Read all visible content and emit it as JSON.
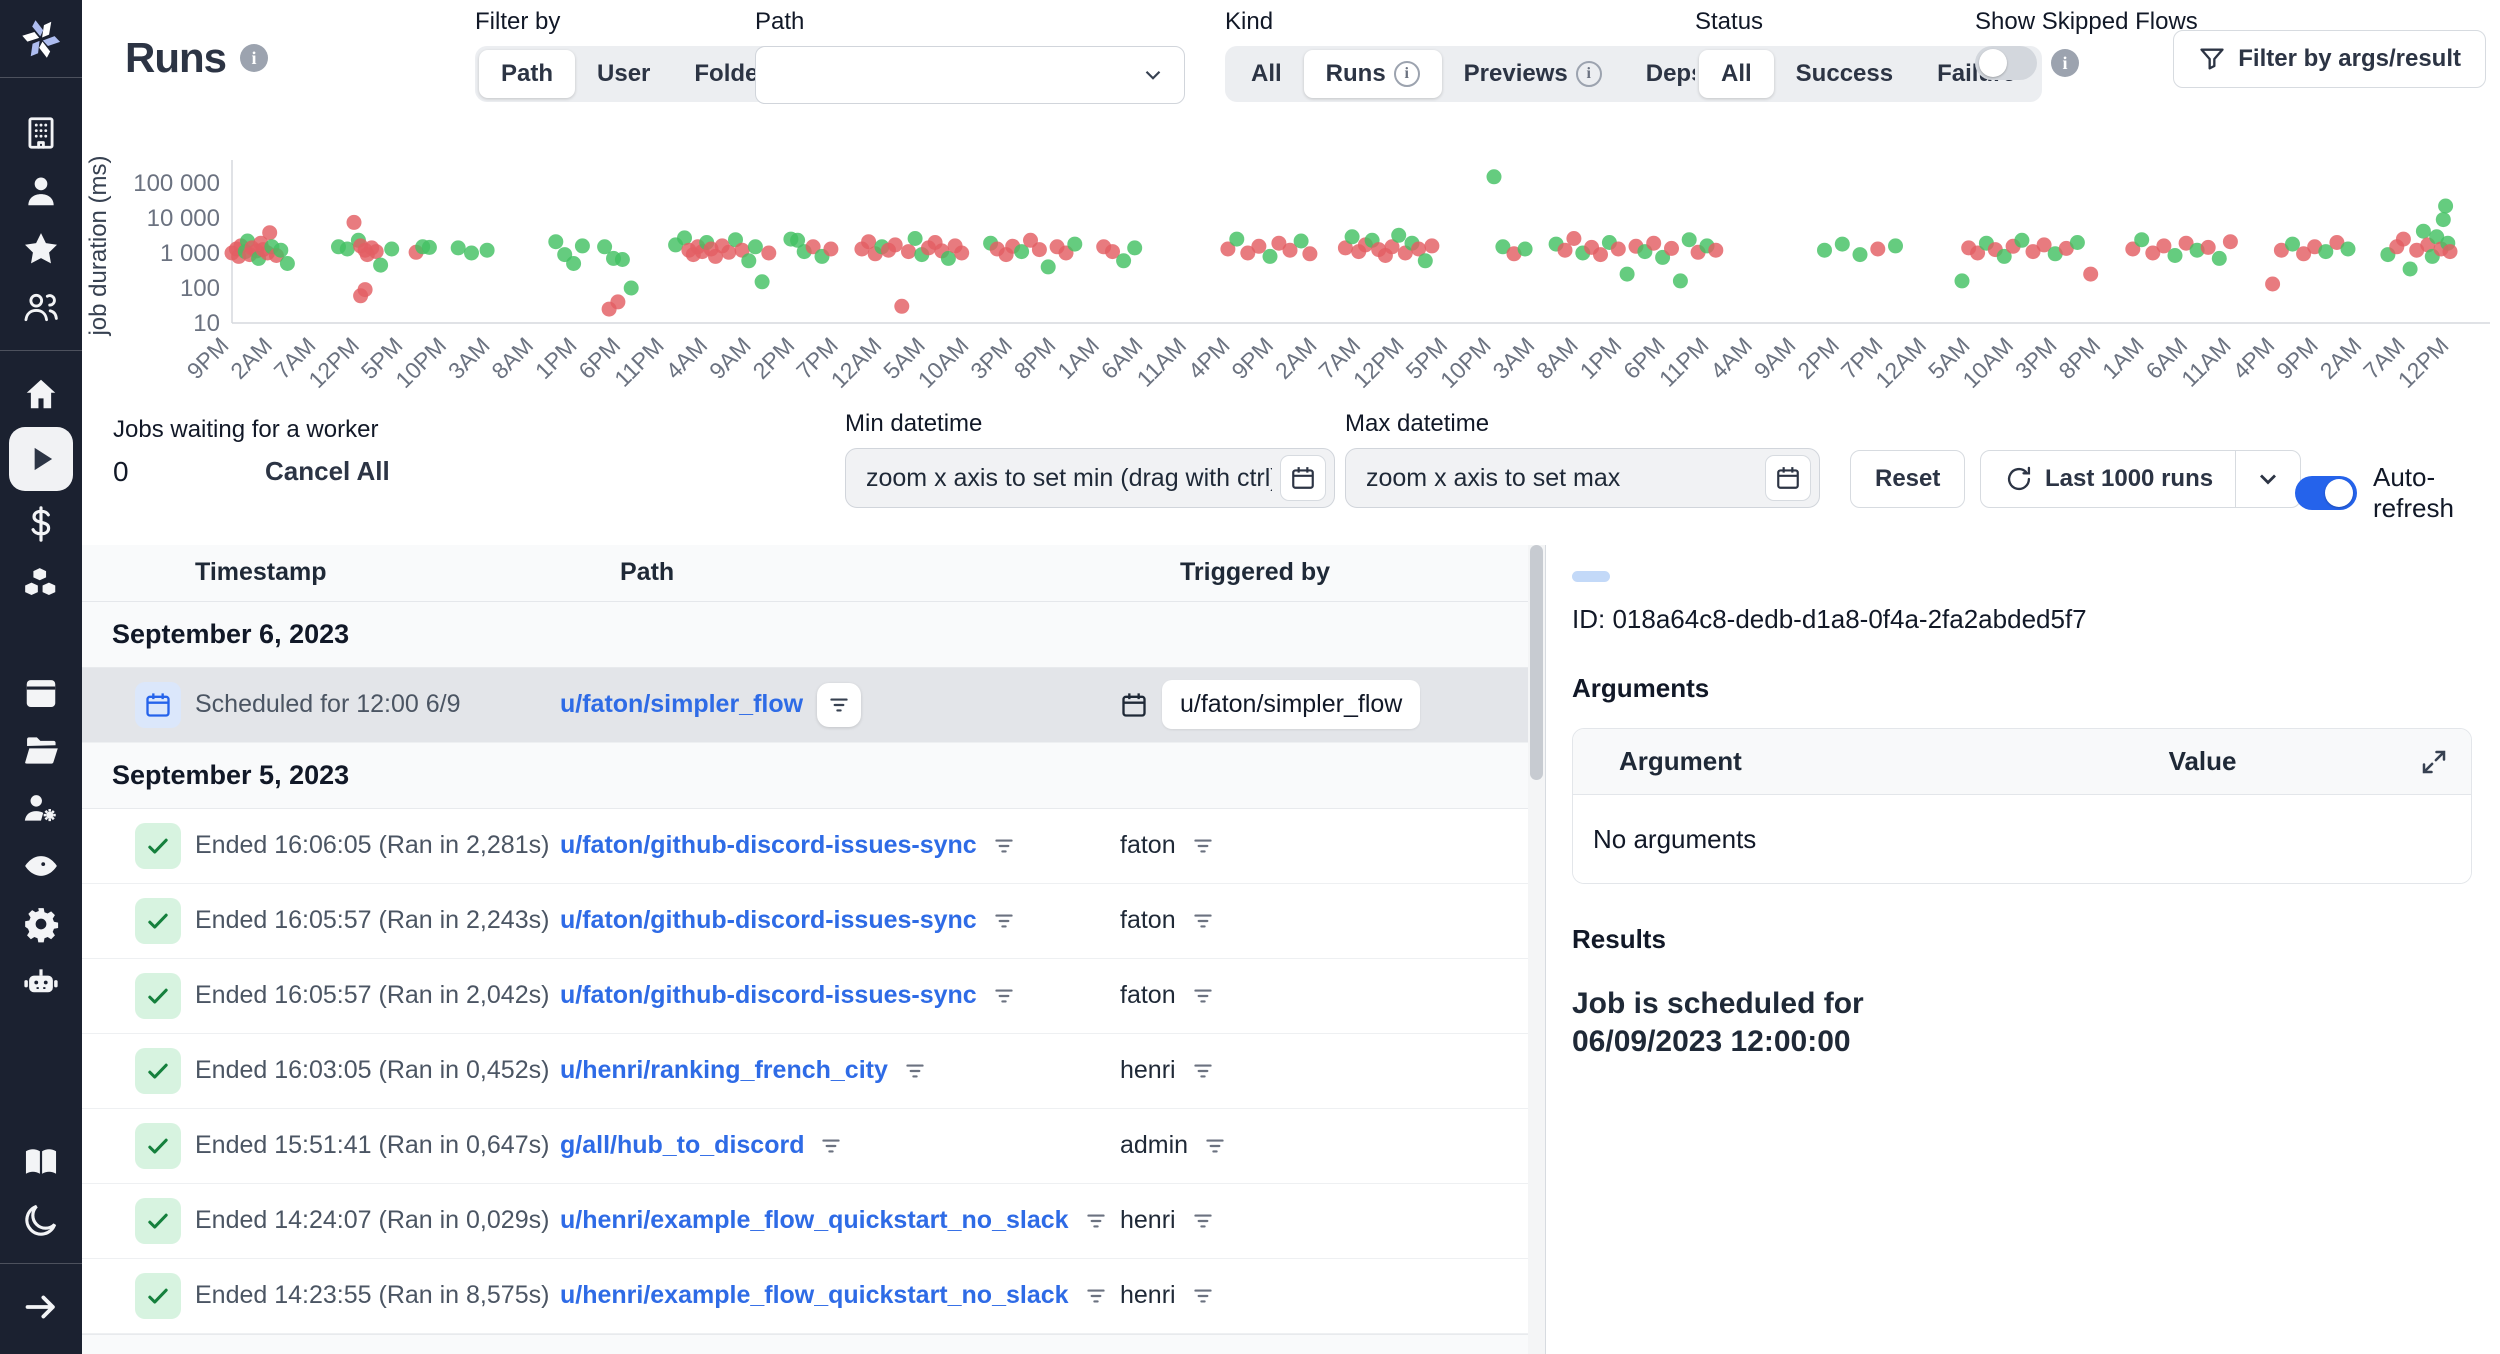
{
  "header": {
    "title": "Runs",
    "filter_by": {
      "label": "Filter by",
      "options": [
        "Path",
        "User",
        "Folder"
      ],
      "selected": "Path"
    },
    "path_filter": {
      "label": "Path",
      "value": ""
    },
    "kind": {
      "label": "Kind",
      "options": [
        {
          "label": "All",
          "info": false
        },
        {
          "label": "Runs",
          "info": true
        },
        {
          "label": "Previews",
          "info": true
        },
        {
          "label": "Deps",
          "info": true
        }
      ],
      "selected": "Runs"
    },
    "status": {
      "label": "Status",
      "options": [
        {
          "label": "All",
          "info": false
        },
        {
          "label": "Success",
          "info": false
        },
        {
          "label": "Failure",
          "info": false
        }
      ],
      "selected": "All"
    },
    "skipped_flows": {
      "label": "Show Skipped Flows",
      "enabled": false
    },
    "args_filter_button": "Filter by args/result"
  },
  "chart_data": {
    "type": "scatter",
    "ylabel": "job duration (ms)",
    "yscale": "log",
    "yticks": {
      "values": [
        100000,
        10000,
        1000,
        100,
        10
      ],
      "labels": [
        "100 000",
        "10 000",
        "1 000",
        "100",
        "10"
      ]
    },
    "xticks": [
      "9PM",
      "2AM",
      "7AM",
      "12PM",
      "5PM",
      "10PM",
      "3AM",
      "8AM",
      "1PM",
      "6PM",
      "11PM",
      "4AM",
      "9AM",
      "2PM",
      "7PM",
      "12AM",
      "5AM",
      "10AM",
      "3PM",
      "8PM",
      "1AM",
      "6AM",
      "11AM",
      "4PM",
      "9PM",
      "2AM",
      "7AM",
      "12PM",
      "5PM",
      "10PM",
      "3AM",
      "8AM",
      "1PM",
      "6PM",
      "11PM",
      "4AM",
      "9AM",
      "2PM",
      "7PM",
      "12AM",
      "5AM",
      "10AM",
      "3PM",
      "8PM",
      "1AM",
      "6AM",
      "11AM",
      "4PM",
      "9PM",
      "2AM",
      "7AM",
      "12PM"
    ],
    "series_colors": {
      "success": "#43c163",
      "failure": "#e35e63"
    },
    "legend": false,
    "grid": false,
    "points": [
      [
        0.0,
        1000,
        "f"
      ],
      [
        0.002,
        1300,
        "f"
      ],
      [
        0.003,
        800,
        "f"
      ],
      [
        0.004,
        1600,
        "f"
      ],
      [
        0.006,
        1100,
        "s"
      ],
      [
        0.007,
        2200,
        "s"
      ],
      [
        0.008,
        900,
        "f"
      ],
      [
        0.009,
        1400,
        "f"
      ],
      [
        0.011,
        1150,
        "f"
      ],
      [
        0.012,
        700,
        "s"
      ],
      [
        0.013,
        1900,
        "f"
      ],
      [
        0.014,
        1250,
        "f"
      ],
      [
        0.016,
        1000,
        "f"
      ],
      [
        0.017,
        3800,
        "f"
      ],
      [
        0.018,
        1500,
        "s"
      ],
      [
        0.02,
        850,
        "f"
      ],
      [
        0.022,
        1200,
        "s"
      ],
      [
        0.025,
        500,
        "s"
      ],
      [
        0.048,
        1500,
        "s"
      ],
      [
        0.052,
        1300,
        "s"
      ],
      [
        0.055,
        7500,
        "f"
      ],
      [
        0.057,
        2300,
        "s"
      ],
      [
        0.058,
        1600,
        "f"
      ],
      [
        0.06,
        1200,
        "f"
      ],
      [
        0.061,
        900,
        "f"
      ],
      [
        0.063,
        1400,
        "f"
      ],
      [
        0.065,
        1100,
        "f"
      ],
      [
        0.067,
        450,
        "s"
      ],
      [
        0.058,
        60,
        "f"
      ],
      [
        0.06,
        90,
        "f"
      ],
      [
        0.072,
        1300,
        "s"
      ],
      [
        0.083,
        1050,
        "f"
      ],
      [
        0.086,
        1500,
        "s"
      ],
      [
        0.089,
        1450,
        "s"
      ],
      [
        0.102,
        1400,
        "s"
      ],
      [
        0.108,
        1000,
        "s"
      ],
      [
        0.115,
        1200,
        "s"
      ],
      [
        0.146,
        2100,
        "s"
      ],
      [
        0.15,
        900,
        "s"
      ],
      [
        0.154,
        500,
        "s"
      ],
      [
        0.158,
        1600,
        "s"
      ],
      [
        0.168,
        1500,
        "s"
      ],
      [
        0.172,
        700,
        "s"
      ],
      [
        0.176,
        650,
        "s"
      ],
      [
        0.18,
        100,
        "s"
      ],
      [
        0.17,
        25,
        "f"
      ],
      [
        0.174,
        40,
        "f"
      ],
      [
        0.2,
        1700,
        "s"
      ],
      [
        0.204,
        2700,
        "s"
      ],
      [
        0.206,
        1200,
        "f"
      ],
      [
        0.208,
        900,
        "f"
      ],
      [
        0.21,
        1500,
        "f"
      ],
      [
        0.212,
        1100,
        "f"
      ],
      [
        0.214,
        2000,
        "s"
      ],
      [
        0.216,
        1300,
        "f"
      ],
      [
        0.218,
        800,
        "f"
      ],
      [
        0.221,
        1600,
        "f"
      ],
      [
        0.224,
        1050,
        "f"
      ],
      [
        0.227,
        2400,
        "s"
      ],
      [
        0.23,
        1200,
        "f"
      ],
      [
        0.233,
        600,
        "s"
      ],
      [
        0.236,
        1500,
        "s"
      ],
      [
        0.239,
        150,
        "s"
      ],
      [
        0.242,
        1000,
        "f"
      ],
      [
        0.252,
        2500,
        "s"
      ],
      [
        0.255,
        2300,
        "s"
      ],
      [
        0.258,
        1100,
        "s"
      ],
      [
        0.262,
        1500,
        "f"
      ],
      [
        0.266,
        800,
        "s"
      ],
      [
        0.27,
        1300,
        "f"
      ],
      [
        0.284,
        1300,
        "f"
      ],
      [
        0.287,
        2100,
        "f"
      ],
      [
        0.29,
        950,
        "f"
      ],
      [
        0.293,
        1500,
        "s"
      ],
      [
        0.296,
        1200,
        "f"
      ],
      [
        0.299,
        1700,
        "f"
      ],
      [
        0.302,
        30,
        "f"
      ],
      [
        0.305,
        1100,
        "f"
      ],
      [
        0.308,
        2600,
        "s"
      ],
      [
        0.311,
        900,
        "s"
      ],
      [
        0.314,
        1400,
        "f"
      ],
      [
        0.317,
        2000,
        "f"
      ],
      [
        0.32,
        1150,
        "f"
      ],
      [
        0.323,
        700,
        "s"
      ],
      [
        0.326,
        1600,
        "f"
      ],
      [
        0.329,
        1000,
        "f"
      ],
      [
        0.342,
        1900,
        "s"
      ],
      [
        0.345,
        1300,
        "f"
      ],
      [
        0.349,
        900,
        "f"
      ],
      [
        0.352,
        1550,
        "f"
      ],
      [
        0.356,
        1100,
        "s"
      ],
      [
        0.36,
        2300,
        "f"
      ],
      [
        0.364,
        1250,
        "f"
      ],
      [
        0.368,
        400,
        "s"
      ],
      [
        0.372,
        1500,
        "f"
      ],
      [
        0.376,
        1000,
        "f"
      ],
      [
        0.38,
        1800,
        "s"
      ],
      [
        0.393,
        1500,
        "f"
      ],
      [
        0.397,
        1100,
        "f"
      ],
      [
        0.402,
        600,
        "s"
      ],
      [
        0.407,
        1400,
        "s"
      ],
      [
        0.449,
        1300,
        "f"
      ],
      [
        0.453,
        2500,
        "s"
      ],
      [
        0.458,
        1000,
        "f"
      ],
      [
        0.463,
        1550,
        "f"
      ],
      [
        0.468,
        800,
        "s"
      ],
      [
        0.472,
        1900,
        "f"
      ],
      [
        0.477,
        1200,
        "f"
      ],
      [
        0.482,
        2200,
        "s"
      ],
      [
        0.486,
        950,
        "f"
      ],
      [
        0.502,
        1400,
        "f"
      ],
      [
        0.505,
        2900,
        "s"
      ],
      [
        0.508,
        1100,
        "f"
      ],
      [
        0.511,
        1700,
        "f"
      ],
      [
        0.514,
        2300,
        "s"
      ],
      [
        0.517,
        1250,
        "f"
      ],
      [
        0.52,
        850,
        "f"
      ],
      [
        0.523,
        1500,
        "f"
      ],
      [
        0.526,
        3200,
        "s"
      ],
      [
        0.529,
        1000,
        "f"
      ],
      [
        0.532,
        1900,
        "s"
      ],
      [
        0.535,
        1300,
        "f"
      ],
      [
        0.538,
        600,
        "s"
      ],
      [
        0.541,
        1600,
        "f"
      ],
      [
        0.569,
        150000,
        "s"
      ],
      [
        0.573,
        1500,
        "s"
      ],
      [
        0.578,
        950,
        "f"
      ],
      [
        0.583,
        1300,
        "s"
      ],
      [
        0.597,
        1800,
        "s"
      ],
      [
        0.601,
        1200,
        "f"
      ],
      [
        0.605,
        2600,
        "f"
      ],
      [
        0.609,
        1000,
        "s"
      ],
      [
        0.613,
        1450,
        "f"
      ],
      [
        0.617,
        900,
        "f"
      ],
      [
        0.621,
        2000,
        "s"
      ],
      [
        0.625,
        1300,
        "f"
      ],
      [
        0.629,
        250,
        "s"
      ],
      [
        0.633,
        1550,
        "f"
      ],
      [
        0.637,
        1100,
        "s"
      ],
      [
        0.641,
        1900,
        "f"
      ],
      [
        0.645,
        750,
        "s"
      ],
      [
        0.649,
        1350,
        "f"
      ],
      [
        0.653,
        160,
        "s"
      ],
      [
        0.657,
        2400,
        "s"
      ],
      [
        0.661,
        1050,
        "f"
      ],
      [
        0.665,
        1600,
        "s"
      ],
      [
        0.669,
        1200,
        "f"
      ],
      [
        0.718,
        1200,
        "s"
      ],
      [
        0.726,
        1800,
        "s"
      ],
      [
        0.734,
        900,
        "s"
      ],
      [
        0.742,
        1300,
        "f"
      ],
      [
        0.75,
        1600,
        "s"
      ],
      [
        0.78,
        160,
        "s"
      ],
      [
        0.783,
        1400,
        "f"
      ],
      [
        0.787,
        1000,
        "f"
      ],
      [
        0.791,
        1900,
        "s"
      ],
      [
        0.795,
        1250,
        "f"
      ],
      [
        0.799,
        800,
        "s"
      ],
      [
        0.803,
        1550,
        "f"
      ],
      [
        0.807,
        2300,
        "s"
      ],
      [
        0.812,
        1100,
        "f"
      ],
      [
        0.817,
        1700,
        "f"
      ],
      [
        0.822,
        950,
        "s"
      ],
      [
        0.827,
        1350,
        "f"
      ],
      [
        0.832,
        2000,
        "s"
      ],
      [
        0.838,
        250,
        "f"
      ],
      [
        0.857,
        1300,
        "f"
      ],
      [
        0.861,
        2400,
        "s"
      ],
      [
        0.866,
        1000,
        "f"
      ],
      [
        0.871,
        1600,
        "f"
      ],
      [
        0.876,
        850,
        "s"
      ],
      [
        0.881,
        1900,
        "f"
      ],
      [
        0.886,
        1200,
        "s"
      ],
      [
        0.891,
        1450,
        "f"
      ],
      [
        0.896,
        700,
        "s"
      ],
      [
        0.901,
        2100,
        "f"
      ],
      [
        0.92,
        130,
        "f"
      ],
      [
        0.924,
        1200,
        "f"
      ],
      [
        0.929,
        1800,
        "s"
      ],
      [
        0.934,
        950,
        "f"
      ],
      [
        0.939,
        1500,
        "f"
      ],
      [
        0.944,
        1100,
        "s"
      ],
      [
        0.949,
        2000,
        "f"
      ],
      [
        0.954,
        1300,
        "s"
      ],
      [
        0.972,
        900,
        "s"
      ],
      [
        0.976,
        1500,
        "f"
      ],
      [
        0.979,
        2500,
        "f"
      ],
      [
        0.982,
        350,
        "s"
      ],
      [
        0.985,
        1200,
        "f"
      ],
      [
        0.988,
        4200,
        "s"
      ],
      [
        0.99,
        1700,
        "f"
      ],
      [
        0.992,
        800,
        "s"
      ],
      [
        0.994,
        2900,
        "s"
      ],
      [
        0.996,
        1300,
        "f"
      ],
      [
        0.997,
        9000,
        "s"
      ],
      [
        0.998,
        22000,
        "s"
      ],
      [
        0.999,
        1900,
        "s"
      ],
      [
        1.0,
        1100,
        "f"
      ]
    ]
  },
  "controls": {
    "jobs_waiting": {
      "label": "Jobs waiting for a worker",
      "count": "0",
      "cancel_label": "Cancel All"
    },
    "min_datetime": {
      "label": "Min datetime",
      "placeholder": "zoom x axis to set min (drag with ctrl)"
    },
    "max_datetime": {
      "label": "Max datetime",
      "placeholder": "zoom x axis to set max"
    },
    "reset_label": "Reset",
    "runs_window": {
      "label": "Last 1000 runs"
    },
    "autorefresh": {
      "label": "Auto-refresh",
      "enabled": true
    }
  },
  "table": {
    "columns": [
      "Timestamp",
      "Path",
      "Triggered by"
    ],
    "groups": [
      {
        "date": "September 6, 2023",
        "rows": [
          {
            "status": "scheduled",
            "timestamp": "Scheduled for 12:00 6/9",
            "path": "u/faton/simpler_flow",
            "triggered_by": "u/faton/simpler_flow",
            "triggered_style": "schedule-badge",
            "selected": true
          }
        ]
      },
      {
        "date": "September 5, 2023",
        "rows": [
          {
            "status": "success",
            "timestamp": "Ended 16:06:05 (Ran in 2,281s)",
            "path": "u/faton/github-discord-issues-sync",
            "triggered_by": "faton",
            "triggered_style": "user",
            "selected": false
          },
          {
            "status": "success",
            "timestamp": "Ended 16:05:57 (Ran in 2,243s)",
            "path": "u/faton/github-discord-issues-sync",
            "triggered_by": "faton",
            "triggered_style": "user",
            "selected": false
          },
          {
            "status": "success",
            "timestamp": "Ended 16:05:57 (Ran in 2,042s)",
            "path": "u/faton/github-discord-issues-sync",
            "triggered_by": "faton",
            "triggered_style": "user",
            "selected": false
          },
          {
            "status": "success",
            "timestamp": "Ended 16:03:05 (Ran in 0,452s)",
            "path": "u/henri/ranking_french_city",
            "triggered_by": "henri",
            "triggered_style": "user",
            "selected": false
          },
          {
            "status": "success",
            "timestamp": "Ended 15:51:41 (Ran in 0,647s)",
            "path": "g/all/hub_to_discord",
            "triggered_by": "admin",
            "triggered_style": "user",
            "selected": false
          },
          {
            "status": "success",
            "timestamp": "Ended 14:24:07 (Ran in 0,029s)",
            "path": "u/henri/example_flow_quickstart_no_slack",
            "triggered_by": "henri",
            "triggered_style": "user",
            "selected": false
          },
          {
            "status": "success",
            "timestamp": "Ended 14:23:55 (Ran in 8,575s)",
            "path": "u/henri/example_flow_quickstart_no_slack",
            "triggered_by": "henri",
            "triggered_style": "user",
            "selected": false
          }
        ]
      }
    ]
  },
  "details": {
    "id_line": "ID: 018a64c8-dedb-d1a8-0f4a-2fa2abded5f7",
    "arguments_heading": "Arguments",
    "args_columns": {
      "argument": "Argument",
      "value": "Value"
    },
    "args_empty": "No arguments",
    "results_heading": "Results",
    "result_line1": "Job is scheduled for",
    "result_line2": "06/09/2023 12:00:00"
  },
  "sidebar": {
    "items_top": [
      {
        "icon": "building",
        "name": "workspace"
      },
      {
        "icon": "user",
        "name": "user"
      },
      {
        "icon": "star",
        "name": "favorites"
      },
      {
        "icon": "users",
        "name": "members"
      }
    ],
    "items_nav": [
      {
        "icon": "home",
        "name": "home",
        "active": false
      },
      {
        "icon": "play",
        "name": "runs",
        "active": true
      },
      {
        "icon": "dollar",
        "name": "variables",
        "active": false
      },
      {
        "icon": "cubes",
        "name": "resources",
        "active": false
      },
      {
        "icon": "calendar",
        "name": "schedules",
        "active": false
      },
      {
        "icon": "folder",
        "name": "folders",
        "active": false
      },
      {
        "icon": "users-gear",
        "name": "groups",
        "active": false
      },
      {
        "icon": "eye",
        "name": "audit-logs",
        "active": false
      },
      {
        "icon": "gear",
        "name": "settings",
        "active": false
      },
      {
        "icon": "robot",
        "name": "workers",
        "active": false
      }
    ],
    "items_bottom": [
      {
        "icon": "book",
        "name": "docs"
      },
      {
        "icon": "moon",
        "name": "dark-mode"
      }
    ],
    "expand": {
      "icon": "arrow-right",
      "name": "expand-sidebar"
    }
  }
}
